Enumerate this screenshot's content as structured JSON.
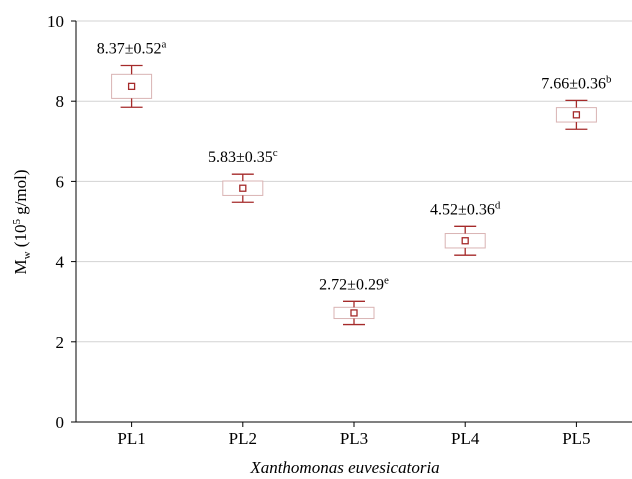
{
  "chart_data": {
    "type": "box",
    "title": "",
    "xlabel": "Xanthomonas euvesicatoria",
    "ylabel": {
      "main": "M",
      "sub": "w",
      "unit_prefix": " (10",
      "unit_sup": "5",
      "unit_suffix": " g/mol)"
    },
    "ylim": [
      0,
      10
    ],
    "yticks": [
      0,
      2,
      4,
      6,
      8,
      10
    ],
    "grid": "horizontal",
    "colors": {
      "mark": "#a52a2a",
      "box": "#d9b3b3",
      "grid": "#d3d3d3"
    },
    "categories": [
      "PL1",
      "PL2",
      "PL3",
      "PL4",
      "PL5"
    ],
    "mean": [
      8.37,
      5.83,
      2.72,
      4.52,
      7.66
    ],
    "box_half": [
      0.3,
      0.18,
      0.14,
      0.18,
      0.18
    ],
    "whisker_half": [
      0.52,
      0.35,
      0.29,
      0.36,
      0.36
    ],
    "labels": [
      {
        "text": "8.37±0.52",
        "sup": "a"
      },
      {
        "text": "5.83±0.35",
        "sup": "c"
      },
      {
        "text": "2.72±0.29",
        "sup": "e"
      },
      {
        "text": "4.52±0.36",
        "sup": "d"
      },
      {
        "text": "7.66±0.36",
        "sup": "b"
      }
    ]
  }
}
